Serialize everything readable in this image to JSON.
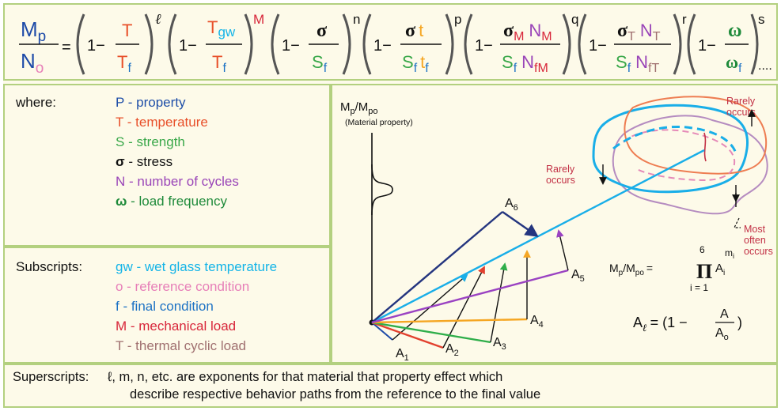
{
  "formula": {
    "lhs_num": "M",
    "lhs_num_sub": "p",
    "lhs_den": "N",
    "lhs_den_sub": "o",
    "equals": "=",
    "one_minus": "1−",
    "t1": {
      "num": "T",
      "den": "T",
      "den_sub": "f",
      "exp": "ℓ"
    },
    "t2": {
      "num": "T",
      "num_sub": "gw",
      "den": "T",
      "den_sub": "f",
      "exp": "M"
    },
    "t3": {
      "num": "σ",
      "den": "S",
      "den_sub": "f",
      "exp": "n"
    },
    "t4": {
      "num": "σ",
      "num2": "t",
      "den": "S",
      "den_sub": "f",
      "den2": "t",
      "den2_sub": "f",
      "exp": "p"
    },
    "t5": {
      "num": "σ",
      "num_sub": "M",
      "num2": "N",
      "num2_sub": "M",
      "den": "S",
      "den_sub": "f",
      "den2": "N",
      "den2_sub": "fM",
      "exp": "q"
    },
    "t6": {
      "num": "σ",
      "num_sub": "T",
      "num2": "N",
      "num2_sub": "T",
      "den": "S",
      "den_sub": "f",
      "den2": "N",
      "den2_sub": "fT",
      "exp": "r"
    },
    "t7": {
      "num": "ω",
      "den": "ω",
      "den_sub": "f",
      "exp": "s"
    },
    "ellipsis": "...."
  },
  "where": {
    "heading": "where:",
    "items": [
      {
        "sym": "P",
        "text": " - property",
        "color": "#1f4fa8"
      },
      {
        "sym": "T",
        "text": " - temperature",
        "color": "#e8502a"
      },
      {
        "sym": "S",
        "text": " - strength",
        "color": "#3aa84a"
      },
      {
        "sym": "σ",
        "text": " - stress",
        "color": "#111111"
      },
      {
        "sym": "N",
        "text": " - number of cycles",
        "color": "#9a45b8"
      },
      {
        "sym": "ω",
        "text": " - load frequency",
        "color": "#1e8a3a"
      }
    ]
  },
  "subscripts": {
    "heading": "Subscripts:",
    "items": [
      {
        "text": "gw - wet glass temperature",
        "color": "#14b4e8"
      },
      {
        "text": "o - reference condition",
        "color": "#e77fb8"
      },
      {
        "text": "f - final condition",
        "color": "#1d72c4"
      },
      {
        "text": "M - mechanical load",
        "color": "#d8263a"
      },
      {
        "text": "T - thermal cyclic load",
        "color": "#a07070"
      }
    ]
  },
  "superscripts": {
    "heading": "Superscripts:",
    "line1": "ℓ, m, n, etc. are exponents for that material that property effect which",
    "line2": "describe respective behavior paths from the reference to the final value"
  },
  "diagram": {
    "axis_label": "M",
    "axis_label_sub": "p",
    "axis_label_rest": "/M",
    "axis_label_sub2": "po",
    "axis_caption": "(Material property)",
    "rarely_top": [
      "Rarely",
      "occurs"
    ],
    "rarely_left": [
      "Rarely",
      "occurs"
    ],
    "most_often": [
      "Most",
      "often",
      "occurs"
    ],
    "vector_labels": [
      "A",
      "A",
      "A",
      "A",
      "A",
      "A"
    ],
    "vector_subs": [
      "1",
      "2",
      "3",
      "4",
      "5",
      "6"
    ],
    "product_lhs": "M",
    "product_lhs_sub": "p",
    "product_lhs_rest": "/M",
    "product_lhs_sub2": "po",
    "product_eq": "=",
    "product_sym": "Π",
    "product_top": "6",
    "product_bottom": "i = 1",
    "product_term": "A",
    "product_term_sub": "i",
    "product_term_exp": "m",
    "product_term_exp_sub": "i",
    "al_lhs": "A",
    "al_lhs_sub": "ℓ",
    "al_eq": "= (1 −",
    "al_num": "A",
    "al_den": "A",
    "al_den_sub": "o",
    "al_close": ")",
    "colors": {
      "navy": "#24357f",
      "blue": "#1d4aa8",
      "cyan": "#19aee8",
      "green": "#2fae4a",
      "orange": "#f5a623",
      "purple": "#9a42c2",
      "red": "#e2402e",
      "pink": "#e58ab8",
      "salmon": "#ee7d52",
      "mauve": "#b58cc0",
      "maroon": "#c23045"
    }
  }
}
